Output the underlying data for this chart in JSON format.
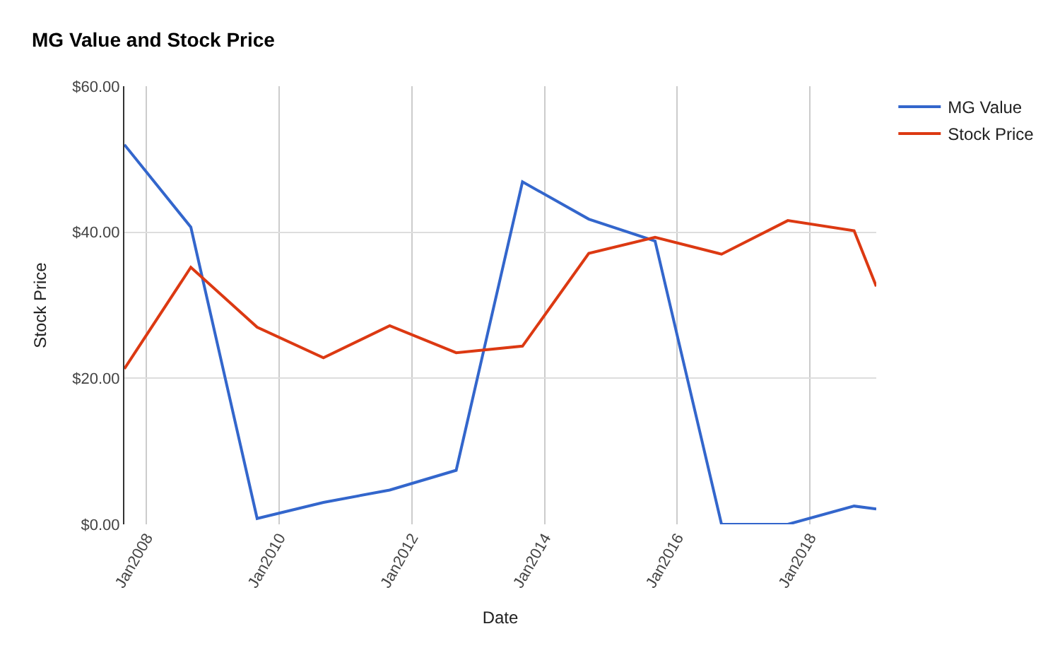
{
  "chart_data": {
    "type": "line",
    "title": "MG Value and Stock Price",
    "xlabel": "Date",
    "ylabel": "Stock Price",
    "x": [
      "2007-09",
      "2008-09",
      "2009-09",
      "2010-09",
      "2011-09",
      "2012-09",
      "2013-09",
      "2014-09",
      "2015-09",
      "2016-09",
      "2017-09",
      "2018-09",
      "2019-01"
    ],
    "series": [
      {
        "name": "MG Value",
        "color": "#3366cc",
        "values": [
          52,
          40.7,
          0.8,
          3.0,
          4.7,
          7.4,
          46.9,
          41.8,
          38.8,
          0,
          0,
          2.5,
          2.1
        ]
      },
      {
        "name": "Stock Price",
        "color": "#dc3912",
        "values": [
          21.3,
          35.2,
          27.0,
          22.8,
          27.2,
          23.5,
          24.4,
          37.1,
          39.3,
          37.0,
          41.6,
          40.2,
          32.6
        ]
      }
    ],
    "xlim": [
      "2007-09",
      "2019-01"
    ],
    "xticks": [
      {
        "value": "2008-01",
        "label": "Jan2008"
      },
      {
        "value": "2010-01",
        "label": "Jan2010"
      },
      {
        "value": "2012-01",
        "label": "Jan2012"
      },
      {
        "value": "2014-01",
        "label": "Jan2014"
      },
      {
        "value": "2016-01",
        "label": "Jan2016"
      },
      {
        "value": "2018-01",
        "label": "Jan2018"
      }
    ],
    "ylim": [
      0,
      60
    ],
    "yticks": [
      {
        "value": 0,
        "label": "$0.00"
      },
      {
        "value": 20,
        "label": "$20.00"
      },
      {
        "value": 40,
        "label": "$40.00"
      },
      {
        "value": 60,
        "label": "$60.00"
      }
    ],
    "grid": true,
    "legend": "top right",
    "marker": "none",
    "line_style": "solid"
  }
}
